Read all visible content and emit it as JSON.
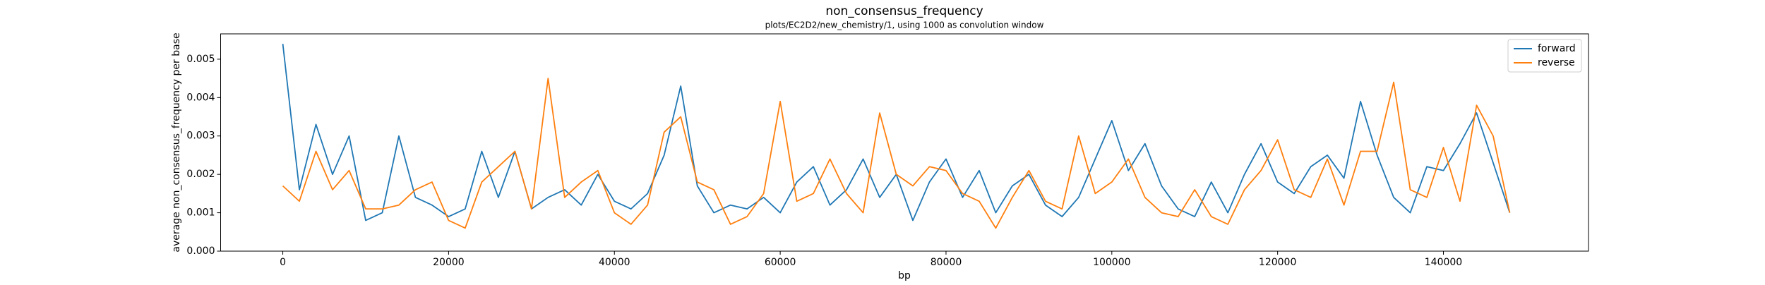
{
  "chart_data": {
    "type": "line",
    "title": "non_consensus_frequency",
    "subtitle": "plots/EC2D2/new_chemistry/1, using 1000 as convolution window",
    "x_label": "bp",
    "y_label": "average non_consensus_frequency per base",
    "x": [
      0,
      2000,
      4000,
      6000,
      8000,
      10000,
      12000,
      14000,
      16000,
      18000,
      20000,
      22000,
      24000,
      26000,
      28000,
      30000,
      32000,
      34000,
      36000,
      38000,
      40000,
      42000,
      44000,
      46000,
      48000,
      50000,
      52000,
      54000,
      56000,
      58000,
      60000,
      62000,
      64000,
      66000,
      68000,
      70000,
      72000,
      74000,
      76000,
      78000,
      80000,
      82000,
      84000,
      86000,
      88000,
      90000,
      92000,
      94000,
      96000,
      98000,
      100000,
      102000,
      104000,
      106000,
      108000,
      110000,
      112000,
      114000,
      116000,
      118000,
      120000,
      122000,
      124000,
      126000,
      128000,
      130000,
      132000,
      134000,
      136000,
      138000,
      140000,
      142000,
      144000,
      146000,
      148000
    ],
    "series": [
      {
        "name": "forward",
        "color": "#1f77b4",
        "values": [
          0.0054,
          0.0016,
          0.0033,
          0.002,
          0.003,
          0.0008,
          0.001,
          0.003,
          0.0014,
          0.0012,
          0.0009,
          0.0011,
          0.0026,
          0.0014,
          0.0026,
          0.0011,
          0.0014,
          0.0016,
          0.0012,
          0.002,
          0.0013,
          0.0011,
          0.0015,
          0.0025,
          0.0043,
          0.0017,
          0.001,
          0.0012,
          0.0011,
          0.0014,
          0.001,
          0.0018,
          0.0022,
          0.0012,
          0.0016,
          0.0024,
          0.0014,
          0.002,
          0.0008,
          0.0018,
          0.0024,
          0.0014,
          0.0021,
          0.001,
          0.0017,
          0.002,
          0.0012,
          0.0009,
          0.0014,
          0.0024,
          0.0034,
          0.0021,
          0.0028,
          0.0017,
          0.0011,
          0.0009,
          0.0018,
          0.001,
          0.002,
          0.0028,
          0.0018,
          0.0015,
          0.0022,
          0.0025,
          0.0019,
          0.0039,
          0.0025,
          0.0014,
          0.001,
          0.0022,
          0.0021,
          0.0028,
          0.0036,
          0.0023,
          0.001
        ]
      },
      {
        "name": "reverse",
        "color": "#ff7f0e",
        "values": [
          0.0017,
          0.0013,
          0.0026,
          0.0016,
          0.0021,
          0.0011,
          0.0011,
          0.0012,
          0.0016,
          0.0018,
          0.0008,
          0.0006,
          0.0018,
          0.0022,
          0.0026,
          0.0011,
          0.0045,
          0.0014,
          0.0018,
          0.0021,
          0.001,
          0.0007,
          0.0012,
          0.0031,
          0.0035,
          0.0018,
          0.0016,
          0.0007,
          0.0009,
          0.0015,
          0.0039,
          0.0013,
          0.0015,
          0.0024,
          0.0015,
          0.001,
          0.0036,
          0.002,
          0.0017,
          0.0022,
          0.0021,
          0.0015,
          0.0013,
          0.0006,
          0.0014,
          0.0021,
          0.0013,
          0.0011,
          0.003,
          0.0015,
          0.0018,
          0.0024,
          0.0014,
          0.001,
          0.0009,
          0.0016,
          0.0009,
          0.0007,
          0.0016,
          0.0021,
          0.0029,
          0.0016,
          0.0014,
          0.0024,
          0.0012,
          0.0026,
          0.0026,
          0.0044,
          0.0016,
          0.0014,
          0.0027,
          0.0013,
          0.0038,
          0.003,
          0.001
        ]
      }
    ],
    "xlim": [
      -7500,
      157500
    ],
    "ylim": [
      0,
      0.00566
    ],
    "xticks": [
      0,
      20000,
      40000,
      60000,
      80000,
      100000,
      120000,
      140000
    ],
    "yticks": [
      {
        "value": 0,
        "label": "0.000"
      },
      {
        "value": 0.001,
        "label": "0.001"
      },
      {
        "value": 0.002,
        "label": "0.002"
      },
      {
        "value": 0.003,
        "label": "0.003"
      },
      {
        "value": 0.004,
        "label": "0.004"
      },
      {
        "value": 0.005,
        "label": "0.005"
      }
    ],
    "legend": "upper right"
  }
}
